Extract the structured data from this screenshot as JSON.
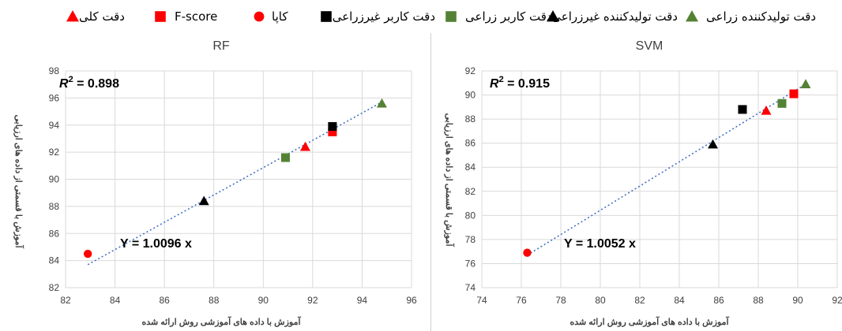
{
  "legend": {
    "items": [
      {
        "label": "دقت کلی",
        "shape": "triangle",
        "color": "#ff0000"
      },
      {
        "label": "F-score",
        "shape": "square",
        "color": "#ff0000"
      },
      {
        "label": "کاپا",
        "shape": "circle",
        "color": "#ff0000"
      },
      {
        "label": "دقت کاربر غیرزراعی",
        "shape": "square",
        "color": "#000000"
      },
      {
        "label": "دقت کاربر زراعی",
        "shape": "square",
        "color": "#548235"
      },
      {
        "label": "دقت تولیدکننده غیرزراعی",
        "shape": "triangle",
        "color": "#000000"
      },
      {
        "label": "دقت تولیدکننده زراعی",
        "shape": "triangle",
        "color": "#548235"
      }
    ]
  },
  "chart_data": [
    {
      "type": "scatter",
      "title": "RF",
      "xlabel": "آموزش با داده های آموزشی روش ارائه شده",
      "ylabel": "آموزش با قسمتی از داده های ارزیابی",
      "xlim": [
        82,
        96
      ],
      "ylim": [
        82,
        98
      ],
      "xticks": [
        82,
        84,
        86,
        88,
        90,
        92,
        94,
        96
      ],
      "yticks": [
        82,
        84,
        86,
        88,
        90,
        92,
        94,
        96,
        98
      ],
      "r2_label": "= 0.898",
      "equation": "Y = 1.0096 x",
      "trendline": {
        "x": [
          82.9,
          94.8
        ],
        "y": [
          83.7,
          95.7
        ]
      },
      "grid": true,
      "points": [
        {
          "name": "کاپا",
          "x": 82.9,
          "y": 84.5
        },
        {
          "name": "دقت تولیدکننده غیرزراعی",
          "x": 87.6,
          "y": 88.4
        },
        {
          "name": "دقت کاربر زراعی",
          "x": 90.9,
          "y": 91.6
        },
        {
          "name": "دقت کلی",
          "x": 91.7,
          "y": 92.4
        },
        {
          "name": "F-score",
          "x": 92.8,
          "y": 93.5
        },
        {
          "name": "دقت کاربر غیرزراعی",
          "x": 92.8,
          "y": 93.9
        },
        {
          "name": "دقت تولیدکننده زراعی",
          "x": 94.8,
          "y": 95.6
        }
      ]
    },
    {
      "type": "scatter",
      "title": "SVM",
      "xlabel": "آموزش با داده های آموزشی روش ارائه شده",
      "ylabel": "آموزش با قسمتی از داده های ارزیابی",
      "xlim": [
        74,
        92
      ],
      "ylim": [
        74,
        92
      ],
      "xticks": [
        74,
        76,
        78,
        80,
        82,
        84,
        86,
        88,
        90,
        92
      ],
      "yticks": [
        74,
        76,
        78,
        80,
        82,
        84,
        86,
        88,
        90,
        92
      ],
      "r2_label": "= 0.915",
      "equation": "Y = 1.0052 x",
      "trendline": {
        "x": [
          76.3,
          90.6
        ],
        "y": [
          76.7,
          91.1
        ]
      },
      "grid": true,
      "points": [
        {
          "name": "کاپا",
          "x": 76.3,
          "y": 76.9
        },
        {
          "name": "دقت تولیدکننده غیرزراعی",
          "x": 85.7,
          "y": 85.9
        },
        {
          "name": "دقت کاربر غیرزراعی",
          "x": 87.2,
          "y": 88.8
        },
        {
          "name": "دقت کلی",
          "x": 88.4,
          "y": 88.7
        },
        {
          "name": "دقت کاربر زراعی",
          "x": 89.2,
          "y": 89.3
        },
        {
          "name": "F-score",
          "x": 89.8,
          "y": 90.1
        },
        {
          "name": "دقت تولیدکننده زراعی",
          "x": 90.4,
          "y": 90.9
        }
      ]
    }
  ]
}
